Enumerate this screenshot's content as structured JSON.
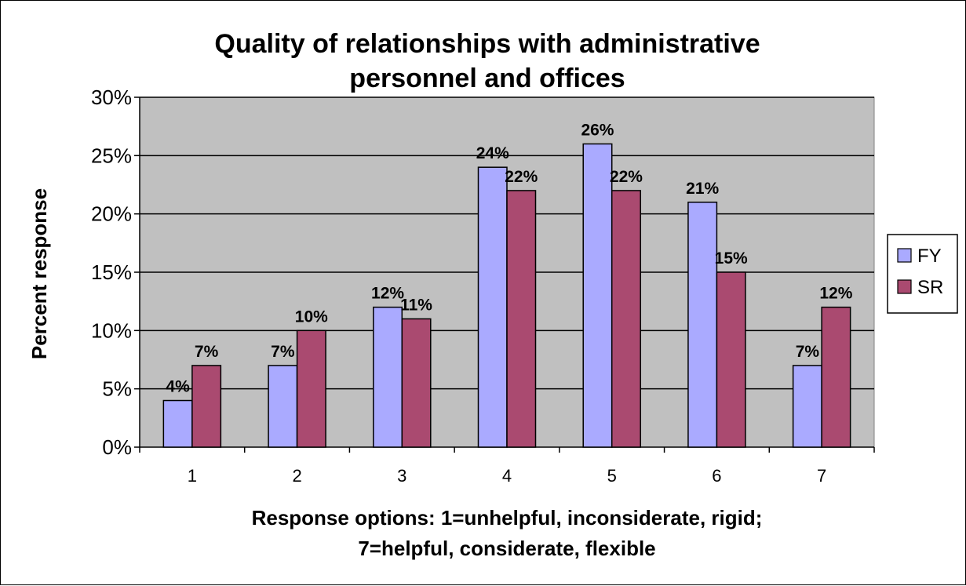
{
  "chart_data": {
    "type": "bar",
    "title_lines": [
      "Quality of relationships with administrative",
      "personnel and offices"
    ],
    "xlabel_lines": [
      "Response options: 1=unhelpful, inconsiderate, rigid;",
      "7=helpful, considerate, flexible"
    ],
    "ylabel": "Percent response",
    "categories": [
      "1",
      "2",
      "3",
      "4",
      "5",
      "6",
      "7"
    ],
    "ylim": [
      0,
      30
    ],
    "ytick_values": [
      0,
      5,
      10,
      15,
      20,
      25,
      30
    ],
    "ytick_labels": [
      "0%",
      "5%",
      "10%",
      "15%",
      "20%",
      "25%",
      "30%"
    ],
    "grid": true,
    "legend_position": "right",
    "series": [
      {
        "name": "FY",
        "color": "#aaaaff",
        "values": [
          4,
          7,
          12,
          24,
          26,
          21,
          7
        ],
        "labels": [
          "4%",
          "7%",
          "12%",
          "24%",
          "26%",
          "21%",
          "7%"
        ]
      },
      {
        "name": "SR",
        "color": "#aa4a70",
        "values": [
          7,
          10,
          11,
          22,
          22,
          15,
          12
        ],
        "labels": [
          "7%",
          "10%",
          "11%",
          "22%",
          "22%",
          "15%",
          "12%"
        ]
      }
    ],
    "plot_background": "#c0c0c0"
  }
}
